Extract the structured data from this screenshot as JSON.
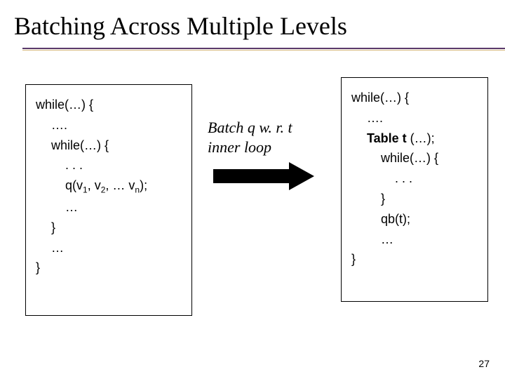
{
  "title": "Batching Across Multiple Levels",
  "left_code": {
    "l1": "while(…) {",
    "l2": "….",
    "l3": "while(…)  {",
    "l4": ". . .",
    "l5a": "q(v",
    "l5s1": "1",
    "l5b": ", v",
    "l5s2": "2",
    "l5c": ", … v",
    "l5s3": "n",
    "l5d": ");",
    "l6": "…",
    "l7": "}",
    "l8": "…",
    "l9": "}"
  },
  "mid": {
    "line1": "Batch q w. r. t",
    "line2": "inner loop"
  },
  "right_code": {
    "l1": "while(…) {",
    "l2": "….",
    "l3a": "Table t",
    "l3b": " (…);",
    "l4": "while(…)  {",
    "l5": ". . .",
    "l6": "}",
    "l7": "qb(t);",
    "l8": "…",
    "l9": "}"
  },
  "page_number": "27",
  "colors": {
    "underline_top": "#5a3a6b",
    "underline_bottom": "#d6b77f",
    "text": "#000000",
    "bg": "#ffffff"
  }
}
